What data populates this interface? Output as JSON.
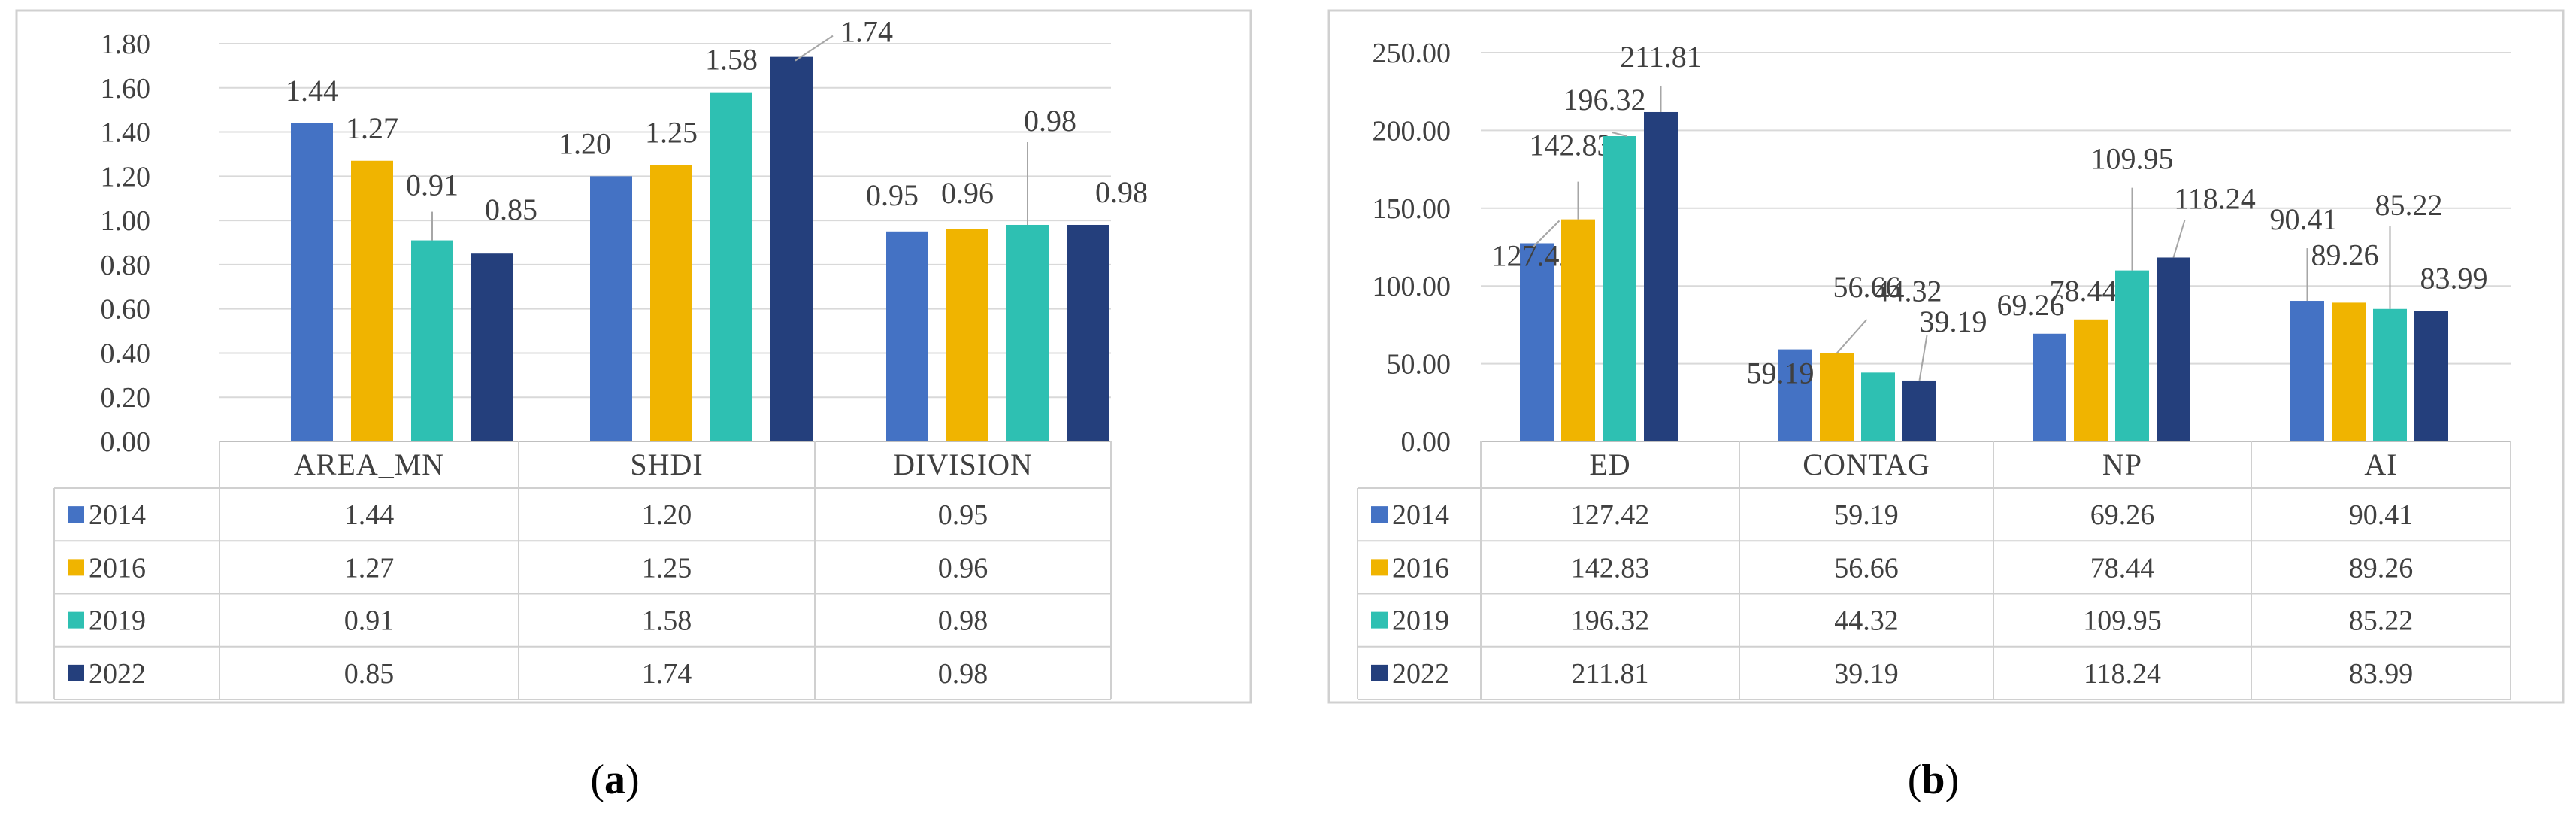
{
  "colors": {
    "2014": "#4472C4",
    "2016": "#F0B400",
    "2019": "#2EC0B2",
    "2022": "#243F7C"
  },
  "chart_data": [
    {
      "type": "bar",
      "caption": "a",
      "categories": [
        "AREA_MN",
        "SHDI",
        "DIVISION"
      ],
      "series": [
        {
          "name": "2014",
          "values": [
            1.44,
            1.2,
            0.95
          ]
        },
        {
          "name": "2016",
          "values": [
            1.27,
            1.25,
            0.96
          ]
        },
        {
          "name": "2019",
          "values": [
            0.91,
            1.58,
            0.98
          ]
        },
        {
          "name": "2022",
          "values": [
            0.85,
            1.74,
            0.98
          ]
        }
      ],
      "ylim": [
        0,
        1.8
      ],
      "yticks": [
        "0.00",
        "0.20",
        "0.40",
        "0.60",
        "0.80",
        "1.00",
        "1.20",
        "1.40",
        "1.60",
        "1.80"
      ],
      "grid": true,
      "data_table": true,
      "table_values": [
        [
          "1.44",
          "1.20",
          "0.95"
        ],
        [
          "1.27",
          "1.25",
          "0.96"
        ],
        [
          "0.91",
          "1.58",
          "0.98"
        ],
        [
          "0.85",
          "1.74",
          "0.98"
        ]
      ]
    },
    {
      "type": "bar",
      "caption": "b",
      "categories": [
        "ED",
        "CONTAG",
        "NP",
        "AI"
      ],
      "series": [
        {
          "name": "2014",
          "values": [
            127.42,
            59.19,
            69.26,
            90.41
          ]
        },
        {
          "name": "2016",
          "values": [
            142.83,
            56.66,
            78.44,
            89.26
          ]
        },
        {
          "name": "2019",
          "values": [
            196.32,
            44.32,
            109.95,
            85.22
          ]
        },
        {
          "name": "2022",
          "values": [
            211.81,
            39.19,
            118.24,
            83.99
          ]
        }
      ],
      "ylim": [
        0,
        250
      ],
      "yticks": [
        "0.00",
        "50.00",
        "100.00",
        "150.00",
        "200.00",
        "250.00"
      ],
      "grid": true,
      "data_table": true,
      "table_values": [
        [
          "127.42",
          "59.19",
          "69.26",
          "90.41"
        ],
        [
          "142.83",
          "56.66",
          "78.44",
          "89.26"
        ],
        [
          "196.32",
          "44.32",
          "109.95",
          "85.22"
        ],
        [
          "211.81",
          "39.19",
          "118.24",
          "83.99"
        ]
      ]
    }
  ]
}
